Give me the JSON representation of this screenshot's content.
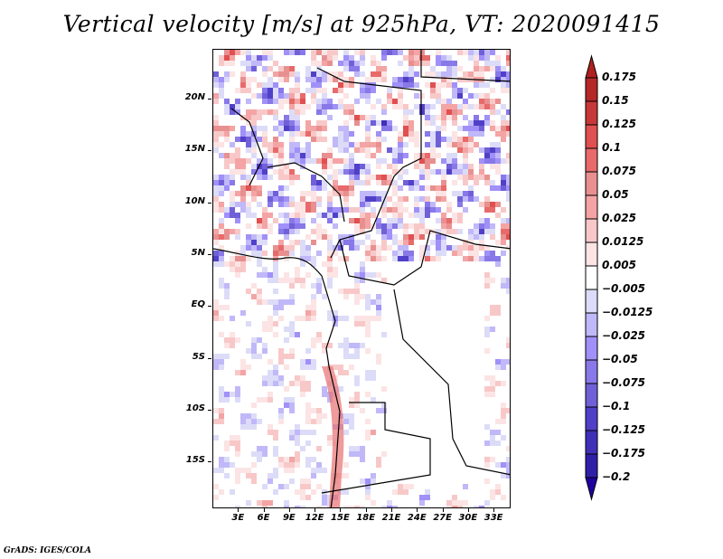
{
  "title": "Vertical velocity [m/s] at 925hPa, VT: 2020091415",
  "footer": "GrADS: IGES/COLA",
  "map": {
    "variable": "Vertical velocity",
    "units": "m/s",
    "level": "925hPa",
    "valid_time": "2020091415",
    "lat_labels": [
      "20N",
      "15N",
      "10N",
      "5N",
      "EQ",
      "5S",
      "10S",
      "15S"
    ],
    "lon_labels": [
      "3E",
      "6E",
      "9E",
      "12E",
      "15E",
      "18E",
      "21E",
      "24E",
      "27E",
      "30E",
      "33E"
    ],
    "lat_values": [
      20,
      15,
      10,
      5,
      0,
      -5,
      -10,
      -15
    ],
    "lon_values": [
      3,
      6,
      9,
      12,
      15,
      18,
      21,
      24,
      27,
      30,
      33
    ],
    "lat_range": [
      -19.5,
      24.8
    ],
    "lon_range": [
      0,
      35
    ]
  },
  "colorbar": {
    "labels": [
      "0.175",
      "0.15",
      "0.125",
      "0.1",
      "0.075",
      "0.05",
      "0.025",
      "0.0125",
      "0.005",
      "−0.005",
      "−0.0125",
      "−0.025",
      "−0.05",
      "−0.075",
      "−0.1",
      "−0.125",
      "−0.175",
      "−0.2"
    ],
    "colors": [
      "#b52828",
      "#c83838",
      "#e05050",
      "#e86a6a",
      "#e89090",
      "#f4a4a4",
      "#f8c8c8",
      "#fce4e4",
      "#ffffff",
      "#dcdcf8",
      "#c0b8f8",
      "#a090f8",
      "#8878e8",
      "#7060d8",
      "#5040c8",
      "#4030b8",
      "#3020a8",
      "#200898"
    ],
    "top_arrow_color": "#b02020",
    "bottom_arrow_color": "#2000a0"
  }
}
